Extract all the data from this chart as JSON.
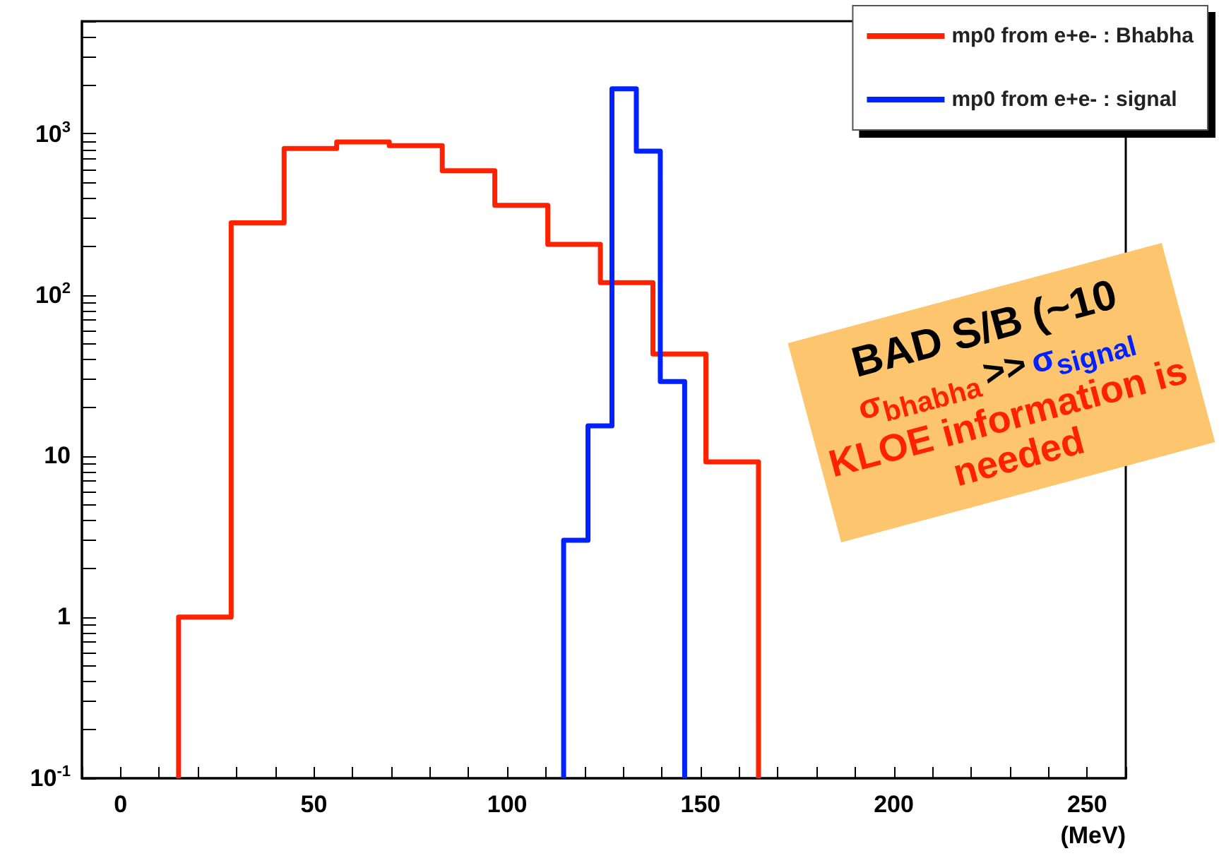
{
  "chart_data": {
    "type": "histogram",
    "xlabel": "(MeV)",
    "bins": [
      15,
      28.6,
      42.3,
      55.9,
      69.5,
      83.2,
      96.8,
      110.5,
      124.1,
      137.7,
      151.4,
      165
    ],
    "series": [
      {
        "name": "mp0 from e+e- : Bhabha",
        "color": "#ff2200",
        "values": [
          1,
          280,
          810,
          890,
          845,
          590,
          360,
          206,
          119,
          43,
          9.2
        ]
      },
      {
        "name": "mp0 from e+e- : signal",
        "color": "#0022ff",
        "bins": [
          114.6,
          120.9,
          127.1,
          133.4,
          139.6,
          145.9
        ],
        "values": [
          3,
          15.4,
          1900,
          780,
          29
        ]
      }
    ],
    "xlim": [
      -10,
      260
    ],
    "xticks": [
      {
        "value": -10,
        "label": null
      },
      0,
      {
        "value": 10,
        "label": null
      },
      {
        "value": 20,
        "label": null
      },
      {
        "value": 30,
        "label": null
      },
      {
        "value": 40,
        "label": null
      },
      50,
      {
        "value": 60,
        "label": null
      },
      {
        "value": 70,
        "label": null
      },
      {
        "value": 80,
        "label": null
      },
      {
        "value": 90,
        "label": null
      },
      100,
      {
        "value": 110,
        "label": null
      },
      {
        "value": 120,
        "label": null
      },
      {
        "value": 130,
        "label": null
      },
      {
        "value": 140,
        "label": null
      },
      150,
      {
        "value": 160,
        "label": null
      },
      {
        "value": 170,
        "label": null
      },
      {
        "value": 180,
        "label": null
      },
      {
        "value": 190,
        "label": null
      },
      200,
      {
        "value": 210,
        "label": null
      },
      {
        "value": 220,
        "label": null
      },
      {
        "value": 230,
        "label": null
      },
      {
        "value": 240,
        "label": null
      },
      250,
      {
        "value": 260,
        "label": null
      }
    ],
    "ylim": [
      0.1,
      5000
    ],
    "yticks": [
      {
        "value": 0.1,
        "label": "10$^{-1}$"
      },
      {
        "value": 0.2,
        "label": null
      },
      {
        "value": 0.3,
        "label": null
      },
      {
        "value": 0.4,
        "label": null
      },
      {
        "value": 0.5,
        "label": null
      },
      {
        "value": 0.6,
        "label": null
      },
      {
        "value": 0.7,
        "label": null
      },
      {
        "value": 0.8,
        "label": null
      },
      {
        "value": 0.9,
        "label": null
      },
      1,
      {
        "value": 2,
        "label": null
      },
      {
        "value": 3,
        "label": null
      },
      {
        "value": 4,
        "label": null
      },
      {
        "value": 5,
        "label": null
      },
      {
        "value": 6,
        "label": null
      },
      {
        "value": 7,
        "label": null
      },
      {
        "value": 8,
        "label": null
      },
      {
        "value": 9,
        "label": null
      },
      10,
      {
        "value": 20,
        "label": null
      },
      {
        "value": 30,
        "label": null
      },
      {
        "value": 40,
        "label": null
      },
      {
        "value": 50,
        "label": null
      },
      {
        "value": 60,
        "label": null
      },
      {
        "value": 70,
        "label": null
      },
      {
        "value": 80,
        "label": null
      },
      {
        "value": 90,
        "label": null
      },
      {
        "value": 100,
        "label": "10$^{2}$"
      },
      {
        "value": 200,
        "label": null
      },
      {
        "value": 300,
        "label": null
      },
      {
        "value": 400,
        "label": null
      },
      {
        "value": 500,
        "label": null
      },
      {
        "value": 600,
        "label": null
      },
      {
        "value": 700,
        "label": null
      },
      {
        "value": 800,
        "label": null
      },
      {
        "value": 900,
        "label": null
      },
      {
        "value": 1000,
        "label": "10$^{3}$"
      },
      {
        "value": 2000,
        "label": null
      },
      {
        "value": 3000,
        "label": null
      },
      {
        "value": 4000,
        "label": null
      },
      {
        "value": 5000,
        "label": null
      }
    ],
    "log": "y",
    "grid": false,
    "legend": "top right",
    "annotations": [
      "BAD S/B (~10",
      "σ$_{bhabha}$",
      ">>",
      "σ$_{signal}$",
      "KLOE information is needed"
    ]
  }
}
